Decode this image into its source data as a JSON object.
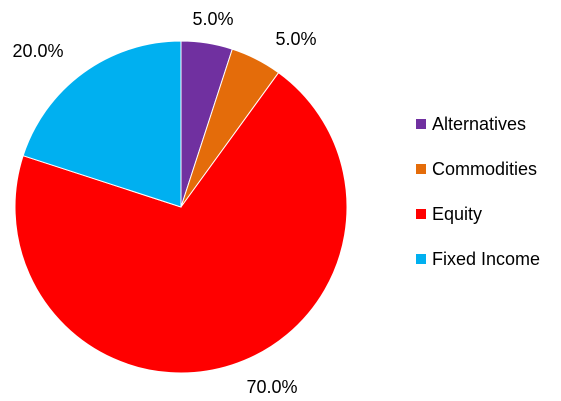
{
  "chart_data": {
    "type": "pie",
    "categories": [
      "Alternatives",
      "Commodities",
      "Equity",
      "Fixed Income"
    ],
    "values": [
      5.0,
      5.0,
      70.0,
      20.0
    ],
    "data_labels": [
      "5.0%",
      "5.0%",
      "70.0%",
      "20.0%"
    ],
    "colors": [
      "#7030A0",
      "#E46C0A",
      "#FF0000",
      "#00B0F0"
    ],
    "start_angle_deg": 0,
    "direction": "clockwise",
    "legend_position": "right",
    "title": ""
  }
}
